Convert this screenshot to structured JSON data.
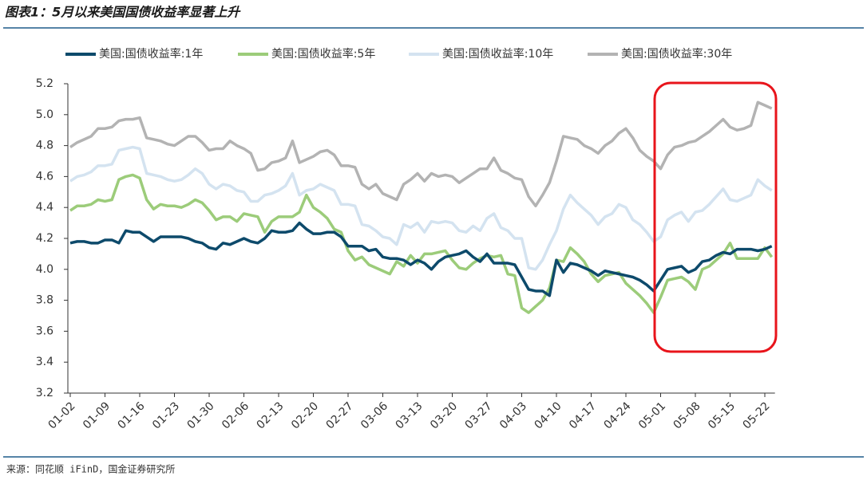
{
  "chart_data": {
    "type": "line",
    "title": "图表1：5月以来美国国债收益率显著上升",
    "source": "来源：同花顺 iFinD，国金证券研究所",
    "categories": [
      "01-02",
      null,
      null,
      null,
      null,
      "01-09",
      null,
      null,
      null,
      null,
      "01-16",
      null,
      null,
      null,
      null,
      "01-23",
      null,
      null,
      null,
      null,
      "01-30",
      null,
      null,
      null,
      null,
      "02-06",
      null,
      null,
      null,
      null,
      "02-13",
      null,
      null,
      null,
      null,
      "02-20",
      null,
      null,
      null,
      null,
      "02-27",
      null,
      null,
      null,
      null,
      "03-06",
      null,
      null,
      null,
      null,
      "03-13",
      null,
      null,
      null,
      null,
      "03-20",
      null,
      null,
      null,
      null,
      "03-27",
      null,
      null,
      null,
      null,
      "04-03",
      null,
      null,
      null,
      null,
      "04-10",
      null,
      null,
      null,
      null,
      "04-17",
      null,
      null,
      null,
      null,
      "04-24",
      null,
      null,
      null,
      null,
      "05-01",
      null,
      null,
      null,
      null,
      "05-08",
      null,
      null,
      null,
      null,
      "05-15",
      null,
      null,
      null,
      null,
      "05-22",
      null
    ],
    "series": [
      {
        "name": "美国:国债收益率:1年",
        "color": "#0d4a6b",
        "values": [
          4.17,
          4.18,
          4.18,
          4.17,
          4.17,
          4.19,
          4.19,
          4.17,
          4.25,
          4.24,
          4.24,
          4.21,
          4.18,
          4.21,
          4.21,
          4.21,
          4.21,
          4.2,
          4.18,
          4.17,
          4.14,
          4.13,
          4.17,
          4.16,
          4.18,
          4.2,
          4.18,
          4.17,
          4.2,
          4.25,
          4.24,
          4.24,
          4.25,
          4.3,
          4.26,
          4.23,
          4.23,
          4.24,
          4.24,
          4.21,
          4.15,
          4.15,
          4.15,
          4.12,
          4.13,
          4.08,
          4.07,
          4.07,
          4.06,
          4.03,
          4.06,
          4.04,
          4.0,
          4.05,
          4.08,
          4.09,
          4.1,
          4.12,
          4.08,
          4.05,
          4.1,
          4.04,
          4.04,
          4.04,
          4.03,
          3.95,
          3.87,
          3.86,
          3.86,
          3.83,
          4.06,
          3.98,
          4.04,
          4.03,
          4.01,
          3.99,
          3.96,
          3.99,
          3.98,
          3.97,
          3.96,
          3.95,
          3.93,
          3.9,
          3.86,
          3.93,
          4.0,
          4.01,
          4.02,
          3.98,
          4.0,
          4.05,
          4.06,
          4.09,
          4.11,
          4.1,
          4.13,
          4.13,
          4.13,
          4.12,
          4.13,
          4.15
        ]
      },
      {
        "name": "美国:国债收益率:5年",
        "color": "#9ccc7a",
        "values": [
          4.38,
          4.41,
          4.41,
          4.42,
          4.45,
          4.44,
          4.45,
          4.58,
          4.6,
          4.61,
          4.59,
          4.45,
          4.39,
          4.42,
          4.41,
          4.41,
          4.4,
          4.42,
          4.45,
          4.43,
          4.38,
          4.32,
          4.34,
          4.34,
          4.31,
          4.36,
          4.35,
          4.34,
          4.24,
          4.31,
          4.34,
          4.34,
          4.34,
          4.37,
          4.48,
          4.4,
          4.37,
          4.33,
          4.26,
          4.24,
          4.12,
          4.06,
          4.08,
          4.03,
          4.01,
          3.99,
          3.97,
          4.05,
          4.02,
          4.09,
          4.04,
          4.1,
          4.1,
          4.11,
          4.12,
          4.06,
          4.01,
          4.0,
          4.04,
          4.07,
          4.09,
          4.08,
          4.09,
          3.97,
          3.96,
          3.75,
          3.72,
          3.76,
          3.8,
          3.88,
          4.06,
          4.05,
          4.14,
          4.1,
          4.05,
          3.97,
          3.92,
          3.96,
          3.97,
          3.98,
          3.91,
          3.87,
          3.83,
          3.78,
          3.72,
          3.82,
          3.93,
          3.94,
          3.95,
          3.92,
          3.87,
          4.0,
          4.02,
          4.06,
          4.1,
          4.17,
          4.07,
          4.07,
          4.07,
          4.07,
          4.14,
          4.08
        ]
      },
      {
        "name": "美国:国债收益率:10年",
        "color": "#d4e3f0",
        "values": [
          4.57,
          4.6,
          4.61,
          4.63,
          4.67,
          4.67,
          4.68,
          4.77,
          4.78,
          4.79,
          4.78,
          4.62,
          4.61,
          4.6,
          4.58,
          4.57,
          4.58,
          4.61,
          4.65,
          4.62,
          4.55,
          4.52,
          4.55,
          4.54,
          4.51,
          4.5,
          4.44,
          4.44,
          4.48,
          4.49,
          4.51,
          4.54,
          4.62,
          4.48,
          4.51,
          4.52,
          4.55,
          4.53,
          4.51,
          4.42,
          4.42,
          4.41,
          4.29,
          4.28,
          4.25,
          4.21,
          4.2,
          4.16,
          4.29,
          4.27,
          4.3,
          4.24,
          4.31,
          4.3,
          4.31,
          4.3,
          4.25,
          4.24,
          4.28,
          4.25,
          4.33,
          4.36,
          4.27,
          4.25,
          4.2,
          4.2,
          4.01,
          4.0,
          4.06,
          4.16,
          4.25,
          4.39,
          4.48,
          4.43,
          4.39,
          4.35,
          4.29,
          4.34,
          4.36,
          4.42,
          4.4,
          4.32,
          4.29,
          4.24,
          4.18,
          4.21,
          4.32,
          4.35,
          4.37,
          4.31,
          4.37,
          4.38,
          4.42,
          4.47,
          4.52,
          4.45,
          4.44,
          4.46,
          4.48,
          4.58,
          4.54,
          4.51
        ]
      },
      {
        "name": "美国:国债收益率:30年",
        "color": "#b3b3b3",
        "values": [
          4.79,
          4.82,
          4.84,
          4.86,
          4.91,
          4.91,
          4.92,
          4.96,
          4.97,
          4.97,
          4.98,
          4.85,
          4.84,
          4.83,
          4.81,
          4.8,
          4.83,
          4.86,
          4.86,
          4.82,
          4.77,
          4.78,
          4.78,
          4.83,
          4.8,
          4.78,
          4.75,
          4.64,
          4.65,
          4.69,
          4.7,
          4.72,
          4.83,
          4.69,
          4.71,
          4.73,
          4.76,
          4.77,
          4.74,
          4.67,
          4.67,
          4.66,
          4.55,
          4.52,
          4.55,
          4.49,
          4.47,
          4.45,
          4.55,
          4.58,
          4.62,
          4.57,
          4.62,
          4.6,
          4.61,
          4.6,
          4.56,
          4.59,
          4.62,
          4.65,
          4.65,
          4.72,
          4.64,
          4.62,
          4.59,
          4.58,
          4.47,
          4.41,
          4.48,
          4.56,
          4.7,
          4.86,
          4.85,
          4.84,
          4.8,
          4.78,
          4.75,
          4.8,
          4.83,
          4.88,
          4.91,
          4.85,
          4.77,
          4.73,
          4.7,
          4.65,
          4.74,
          4.79,
          4.8,
          4.82,
          4.83,
          4.86,
          4.89,
          4.93,
          4.97,
          4.92,
          4.9,
          4.91,
          4.93,
          5.08,
          5.06,
          5.04
        ]
      }
    ],
    "ylim": [
      3.2,
      5.2
    ],
    "yticks": [
      3.2,
      3.4,
      3.6,
      3.8,
      {
        "value": 4,
        "label": "4.0"
      },
      4.2,
      4.4,
      4.6,
      4.8,
      {
        "value": 5,
        "label": "5.0"
      },
      5.2
    ]
  }
}
